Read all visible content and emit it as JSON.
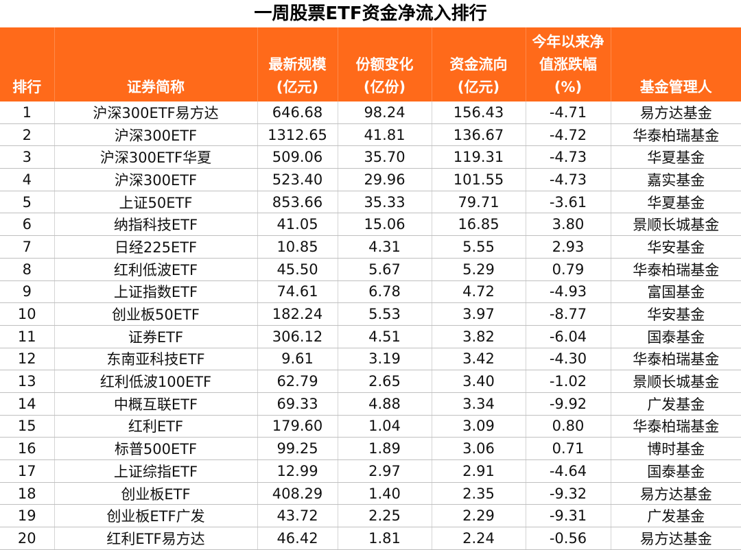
{
  "chart_data": {
    "type": "table",
    "title": "一周股票ETF资金净流入排行",
    "columns": [
      {
        "lines": [
          "排行"
        ]
      },
      {
        "lines": [
          "证券简称"
        ]
      },
      {
        "lines": [
          "最新规模",
          "(亿元)"
        ]
      },
      {
        "lines": [
          "份额变化",
          "(亿份)"
        ]
      },
      {
        "lines": [
          "资金流向",
          "(亿元)"
        ]
      },
      {
        "lines": [
          "今年以来净",
          "值涨跌幅",
          "(%)"
        ]
      },
      {
        "lines": [
          "基金管理人"
        ]
      }
    ],
    "rows": [
      [
        "1",
        "沪深300ETF易方达",
        "646.68",
        "98.24",
        "156.43",
        "-4.71",
        "易方达基金"
      ],
      [
        "2",
        "沪深300ETF",
        "1312.65",
        "41.81",
        "136.67",
        "-4.72",
        "华泰柏瑞基金"
      ],
      [
        "3",
        "沪深300ETF华夏",
        "509.06",
        "35.70",
        "119.31",
        "-4.73",
        "华夏基金"
      ],
      [
        "4",
        "沪深300ETF",
        "523.40",
        "29.96",
        "101.55",
        "-4.73",
        "嘉实基金"
      ],
      [
        "5",
        "上证50ETF",
        "853.66",
        "35.33",
        "79.71",
        "-3.61",
        "华夏基金"
      ],
      [
        "6",
        "纳指科技ETF",
        "41.05",
        "15.06",
        "16.85",
        "3.80",
        "景顺长城基金"
      ],
      [
        "7",
        "日经225ETF",
        "10.85",
        "4.31",
        "5.55",
        "2.93",
        "华安基金"
      ],
      [
        "8",
        "红利低波ETF",
        "45.50",
        "5.67",
        "5.29",
        "0.79",
        "华泰柏瑞基金"
      ],
      [
        "9",
        "上证指数ETF",
        "74.61",
        "6.78",
        "4.72",
        "-4.93",
        "富国基金"
      ],
      [
        "10",
        "创业板50ETF",
        "182.24",
        "5.53",
        "3.97",
        "-8.77",
        "华安基金"
      ],
      [
        "11",
        "证券ETF",
        "306.12",
        "4.51",
        "3.82",
        "-6.04",
        "国泰基金"
      ],
      [
        "12",
        "东南亚科技ETF",
        "9.61",
        "3.19",
        "3.42",
        "-4.30",
        "华泰柏瑞基金"
      ],
      [
        "13",
        "红利低波100ETF",
        "62.79",
        "2.65",
        "3.40",
        "-1.02",
        "景顺长城基金"
      ],
      [
        "14",
        "中概互联ETF",
        "69.33",
        "4.88",
        "3.34",
        "-9.92",
        "广发基金"
      ],
      [
        "15",
        "红利ETF",
        "179.60",
        "1.04",
        "3.09",
        "0.80",
        "华泰柏瑞基金"
      ],
      [
        "16",
        "标普500ETF",
        "99.25",
        "1.89",
        "3.06",
        "0.71",
        "博时基金"
      ],
      [
        "17",
        "上证综指ETF",
        "12.99",
        "2.97",
        "2.91",
        "-4.64",
        "国泰基金"
      ],
      [
        "18",
        "创业板ETF",
        "408.29",
        "1.40",
        "2.35",
        "-9.32",
        "易方达基金"
      ],
      [
        "19",
        "创业板ETF广发",
        "43.72",
        "2.25",
        "2.29",
        "-9.31",
        "广发基金"
      ],
      [
        "20",
        "红利ETF易方达",
        "46.42",
        "1.81",
        "2.24",
        "-0.56",
        "易方达基金"
      ]
    ]
  },
  "colors": {
    "header_bg": "#ff6a1a",
    "header_text": "#ffffff"
  }
}
